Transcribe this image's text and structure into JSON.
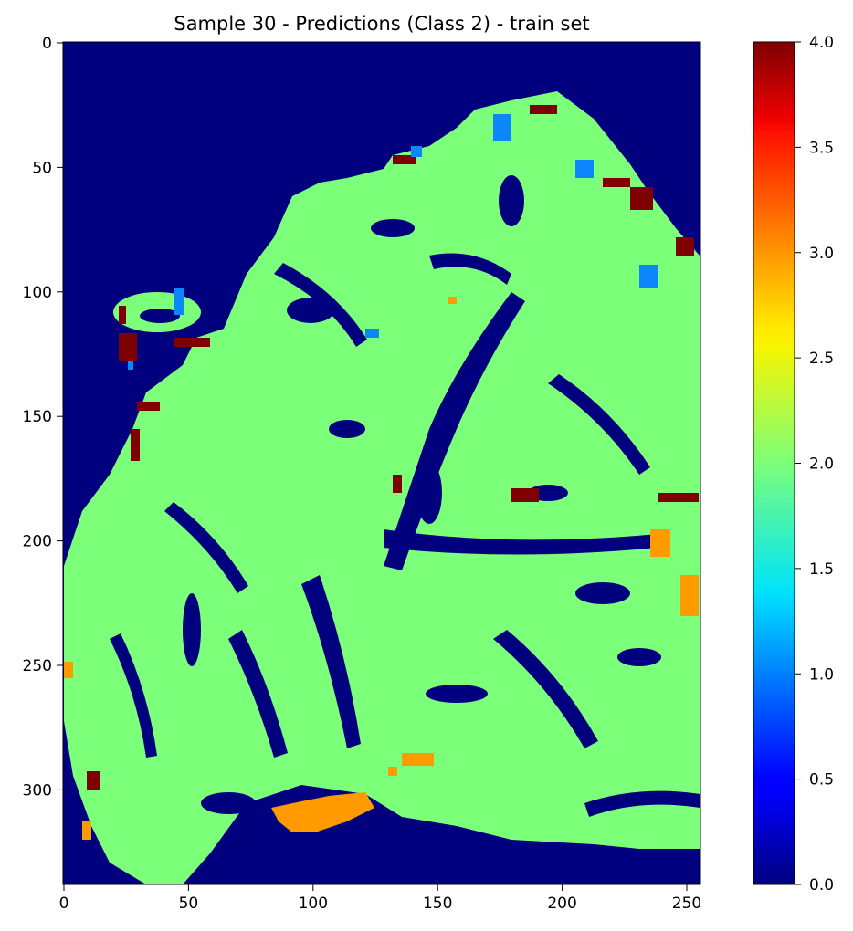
{
  "chart_data": {
    "type": "heatmap",
    "title": "Sample 30 - Predictions (Class 2) - train set",
    "xlabel": "",
    "ylabel": "",
    "xlim": [
      0,
      256
    ],
    "ylim": [
      340,
      0
    ],
    "x_ticks": [
      "0",
      "50",
      "100",
      "150",
      "200",
      "250"
    ],
    "x_tick_values": [
      0,
      50,
      100,
      150,
      200,
      250
    ],
    "y_ticks": [
      "0",
      "50",
      "100",
      "150",
      "200",
      "250",
      "300"
    ],
    "y_tick_values": [
      0,
      50,
      100,
      150,
      200,
      250,
      300
    ],
    "colorbar": {
      "colormap": "jet",
      "range": [
        0.0,
        4.0
      ],
      "ticks": [
        "0.0",
        "0.5",
        "1.0",
        "1.5",
        "2.0",
        "2.5",
        "3.0",
        "3.5",
        "4.0"
      ],
      "tick_values": [
        0.0,
        0.5,
        1.0,
        1.5,
        2.0,
        2.5,
        3.0,
        3.5,
        4.0
      ]
    },
    "classes_present": [
      {
        "value": 0,
        "color": "#00007f"
      },
      {
        "value": 1,
        "color": "#0c86fb"
      },
      {
        "value": 2,
        "color": "#7cff79"
      },
      {
        "value": 3,
        "color": "#ff9a00"
      },
      {
        "value": 4,
        "color": "#7f0000"
      }
    ],
    "grid": false,
    "legend": "colorbar-right"
  }
}
